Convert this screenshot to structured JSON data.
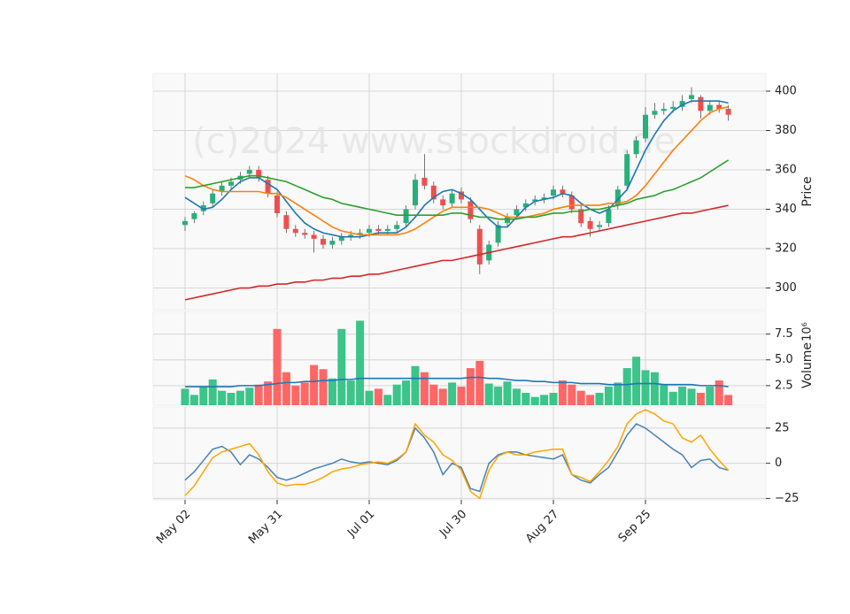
{
  "chart_data": [
    {
      "type": "candlestick",
      "watermark": "(c)2024 www.stockdroid.de",
      "ylabel": "Price",
      "ylim": [
        289,
        409
      ],
      "yticks": [
        300,
        320,
        340,
        360,
        380,
        400
      ],
      "grid": true,
      "color_up": "#26b07a",
      "color_down": "#f04e4e",
      "open": [
        332,
        335,
        339,
        343,
        349,
        352,
        355,
        358,
        360,
        355,
        347,
        337,
        330,
        328,
        327,
        325,
        322,
        324,
        326,
        327,
        328,
        330,
        329,
        330,
        333,
        342,
        356,
        352,
        345,
        343,
        349,
        344,
        330,
        314,
        323,
        333,
        337,
        341,
        344,
        345,
        347,
        350,
        347,
        340,
        334,
        331,
        333,
        342,
        352,
        368,
        376,
        388,
        390,
        391,
        392,
        396,
        397,
        390,
        393,
        391
      ],
      "high": [
        336,
        339,
        344,
        350,
        354,
        356,
        359,
        362,
        362,
        357,
        349,
        339,
        332,
        330,
        329,
        327,
        326,
        328,
        329,
        330,
        332,
        332,
        332,
        334,
        342,
        358,
        368,
        354,
        347,
        350,
        351,
        346,
        332,
        324,
        334,
        338,
        342,
        345,
        347,
        348,
        352,
        352,
        349,
        342,
        336,
        334,
        342,
        352,
        370,
        377,
        392,
        394,
        394,
        395,
        398,
        402,
        398,
        395,
        395,
        393
      ],
      "low": [
        329,
        333,
        337,
        341,
        347,
        350,
        353,
        356,
        354,
        346,
        336,
        328,
        326,
        325,
        318,
        320,
        320,
        322,
        324,
        325,
        326,
        327,
        327,
        328,
        331,
        340,
        350,
        343,
        340,
        341,
        343,
        333,
        307,
        312,
        321,
        331,
        335,
        339,
        342,
        343,
        345,
        346,
        338,
        331,
        326,
        329,
        331,
        340,
        350,
        366,
        374,
        386,
        388,
        389,
        390,
        394,
        386,
        388,
        389,
        385
      ],
      "close": [
        334,
        338,
        342,
        348,
        352,
        354,
        357,
        360,
        356,
        348,
        338,
        330,
        328,
        327,
        325,
        322,
        324,
        326,
        327,
        328,
        330,
        329,
        330,
        332,
        340,
        355,
        352,
        345,
        342,
        348,
        345,
        335,
        312,
        322,
        332,
        336,
        340,
        343,
        345,
        346,
        350,
        348,
        340,
        333,
        330,
        332,
        340,
        350,
        368,
        375,
        388,
        390,
        391,
        392,
        395,
        398,
        390,
        393,
        391,
        388
      ],
      "series": [
        {
          "color": "#1f77b4",
          "values": [
            346,
            343,
            340,
            341,
            345,
            350,
            354,
            356,
            356,
            353,
            350,
            344,
            338,
            333,
            330,
            328,
            327,
            326,
            326,
            326,
            327,
            328,
            328,
            328,
            331,
            336,
            342,
            346,
            349,
            350,
            348,
            345,
            340,
            335,
            331,
            331,
            336,
            341,
            344,
            345,
            346,
            348,
            347,
            343,
            340,
            338,
            340,
            345,
            350,
            360,
            370,
            378,
            385,
            390,
            393,
            395,
            395,
            395,
            395,
            394
          ]
        },
        {
          "color": "#ff7f0e",
          "values": [
            357,
            355,
            352,
            350,
            349,
            349,
            349,
            349,
            349,
            348,
            348,
            346,
            343,
            340,
            337,
            334,
            331,
            329,
            328,
            327,
            327,
            327,
            327,
            327,
            328,
            330,
            333,
            336,
            339,
            341,
            341,
            341,
            341,
            340,
            338,
            336,
            336,
            336,
            337,
            338,
            340,
            341,
            342,
            342,
            342,
            342,
            343,
            343,
            344,
            347,
            352,
            358,
            364,
            370,
            375,
            380,
            385,
            389,
            391,
            392
          ]
        },
        {
          "color": "#2ca02c",
          "values": [
            351,
            351,
            352,
            353,
            354,
            355,
            356,
            357,
            357,
            356,
            355,
            354,
            352,
            350,
            348,
            346,
            345,
            343,
            342,
            341,
            340,
            339,
            338,
            337,
            337,
            337,
            337,
            337,
            337,
            338,
            338,
            337,
            336,
            336,
            335,
            335,
            335,
            336,
            336,
            337,
            338,
            338,
            339,
            339,
            340,
            340,
            341,
            342,
            343,
            345,
            346,
            347,
            349,
            350,
            352,
            354,
            356,
            359,
            362,
            365
          ]
        },
        {
          "color": "#d62728",
          "values": [
            294,
            295,
            296,
            297,
            298,
            299,
            300,
            300,
            301,
            301,
            302,
            302,
            303,
            303,
            304,
            304,
            305,
            305,
            306,
            306,
            307,
            307,
            308,
            309,
            310,
            311,
            312,
            313,
            314,
            314,
            315,
            316,
            317,
            318,
            319,
            320,
            321,
            322,
            323,
            324,
            325,
            326,
            326,
            327,
            328,
            329,
            330,
            331,
            332,
            333,
            334,
            335,
            336,
            337,
            338,
            338,
            339,
            340,
            341,
            342
          ]
        }
      ]
    },
    {
      "type": "bar",
      "ylabel": "Volume",
      "offset_label": "10⁶",
      "ylim": [
        0.6,
        9.7
      ],
      "yticks": [
        2.5,
        {
          "value": 5,
          "label": "5.0"
        },
        7.5
      ],
      "grid": true,
      "color_up": "#3cc48a",
      "color_down": "#ff6666",
      "values": [
        2.2,
        1.6,
        2.4,
        3.1,
        2.0,
        1.8,
        2.0,
        2.3,
        2.6,
        2.9,
        8.0,
        3.8,
        2.5,
        2.8,
        4.5,
        4.1,
        3.2,
        8.0,
        3.0,
        8.8,
        2.0,
        2.2,
        1.6,
        2.6,
        3.0,
        4.4,
        3.8,
        2.6,
        2.2,
        2.8,
        2.4,
        4.2,
        4.9,
        2.7,
        2.4,
        2.9,
        2.2,
        1.8,
        1.4,
        1.6,
        1.8,
        3.0,
        2.6,
        2.0,
        1.6,
        1.8,
        2.4,
        2.8,
        4.2,
        5.3,
        4.0,
        3.8,
        2.6,
        1.9,
        2.4,
        2.2,
        1.8,
        2.4,
        3.0,
        1.6
      ],
      "series": [
        {
          "color": "#1f77b4",
          "values": [
            2.4,
            2.4,
            2.4,
            2.4,
            2.4,
            2.4,
            2.5,
            2.5,
            2.5,
            2.6,
            2.7,
            2.8,
            2.8,
            2.9,
            2.9,
            3.0,
            3.0,
            3.1,
            3.1,
            3.2,
            3.2,
            3.2,
            3.2,
            3.2,
            3.2,
            3.2,
            3.2,
            3.2,
            3.2,
            3.2,
            3.2,
            3.3,
            3.3,
            3.2,
            3.2,
            3.1,
            3.0,
            3.0,
            2.9,
            2.9,
            2.8,
            2.8,
            2.8,
            2.7,
            2.7,
            2.7,
            2.6,
            2.6,
            2.6,
            2.7,
            2.7,
            2.7,
            2.6,
            2.6,
            2.6,
            2.6,
            2.5,
            2.5,
            2.5,
            2.4
          ]
        }
      ]
    },
    {
      "type": "line",
      "ylim": [
        -26,
        40
      ],
      "yticks": [
        {
          "value": -25,
          "label": "−25"
        },
        0,
        25
      ],
      "grid": true,
      "categories": [
        "May 02",
        null,
        null,
        null,
        null,
        null,
        null,
        null,
        null,
        null,
        "May 31",
        null,
        null,
        null,
        null,
        null,
        null,
        null,
        null,
        null,
        "Jul 01",
        null,
        null,
        null,
        null,
        null,
        null,
        null,
        null,
        null,
        "Jul 30",
        null,
        null,
        null,
        null,
        null,
        null,
        null,
        null,
        null,
        "Aug 27",
        null,
        null,
        null,
        null,
        null,
        null,
        null,
        null,
        null,
        "Sep 25",
        null,
        null,
        null,
        null,
        null,
        null,
        null,
        null,
        null
      ],
      "series": [
        {
          "color": "#4682b4",
          "values": [
            -12,
            -6,
            2,
            10,
            12,
            8,
            -1,
            6,
            3,
            -3,
            -10,
            -12,
            -10,
            -7,
            -4,
            -2,
            0,
            3,
            1,
            0,
            1,
            0,
            -1,
            2,
            8,
            25,
            18,
            8,
            -8,
            0,
            -3,
            -18,
            -20,
            0,
            6,
            8,
            8,
            6,
            5,
            4,
            3,
            6,
            -8,
            -12,
            -14,
            -8,
            -3,
            8,
            20,
            28,
            25,
            20,
            15,
            10,
            6,
            -3,
            2,
            3,
            -3,
            -5
          ]
        },
        {
          "color": "#ffa500",
          "values": [
            -23,
            -16,
            -6,
            4,
            8,
            10,
            12,
            14,
            6,
            -6,
            -14,
            -16,
            -15,
            -15,
            -13,
            -10,
            -6,
            -4,
            -3,
            -1,
            0,
            1,
            0,
            3,
            8,
            28,
            20,
            15,
            6,
            2,
            -5,
            -20,
            -25,
            -5,
            5,
            8,
            6,
            6,
            8,
            9,
            10,
            10,
            -8,
            -10,
            -13,
            -6,
            2,
            12,
            28,
            35,
            38,
            35,
            30,
            28,
            18,
            15,
            20,
            10,
            2,
            -5
          ]
        }
      ]
    }
  ]
}
